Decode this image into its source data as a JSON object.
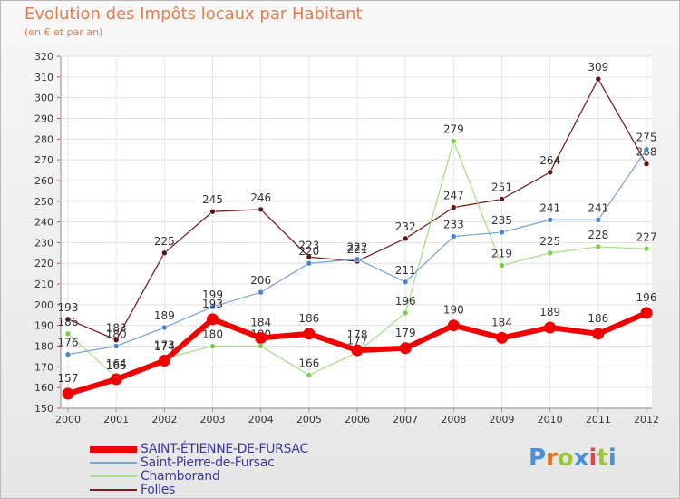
{
  "title": "Evolution des Impôts locaux par Habitant",
  "subtitle": "(en € et par an)",
  "logo": {
    "text": "Proxiti",
    "colors": [
      "#4a8fd9",
      "#e0732a",
      "#9fc33a",
      "#4a8fd9",
      "#d94a4a",
      "#9fc33a",
      "#4a8fd9"
    ]
  },
  "chart_data": {
    "type": "line",
    "categories": [
      "2000",
      "2001",
      "2002",
      "2003",
      "2004",
      "2005",
      "2006",
      "2007",
      "2008",
      "2009",
      "2010",
      "2011",
      "2012"
    ],
    "ylim": [
      150,
      320
    ],
    "yticks": [
      "150",
      "160",
      "170",
      "180",
      "190",
      "200",
      "210",
      "220",
      "230",
      "240",
      "250",
      "260",
      "270",
      "280",
      "290",
      "300",
      "310",
      "320"
    ],
    "grid": true,
    "legend_position": "bottom-left",
    "series": [
      {
        "name": "Folles",
        "color": "#7a2020",
        "marker": "#5c1414",
        "width": 1.3,
        "values": [
          193,
          183,
          225,
          245,
          246,
          223,
          221,
          232,
          247,
          251,
          264,
          309,
          268
        ]
      },
      {
        "name": "Chamborand",
        "color": "#a8e08a",
        "marker": "#78d048",
        "width": 1.3,
        "values": [
          186,
          165,
          174,
          180,
          180,
          166,
          177,
          196,
          279,
          219,
          225,
          228,
          227
        ]
      },
      {
        "name": "Saint-Pierre-de-Fursac",
        "color": "#7aa6d8",
        "marker": "#4a86cc",
        "width": 1.3,
        "values": [
          176,
          180,
          189,
          199,
          206,
          220,
          222,
          211,
          233,
          235,
          241,
          241,
          275
        ]
      },
      {
        "name": "SAINT-ÉTIENNE-DE-FURSAC",
        "color": "#f00000",
        "marker": "#f00000",
        "width": 6,
        "values": [
          157,
          164,
          173,
          193,
          184,
          186,
          178,
          179,
          190,
          184,
          189,
          186,
          196
        ]
      }
    ]
  },
  "legend": [
    {
      "label": "SAINT-ÉTIENNE-DE-FURSAC",
      "color": "#f00000",
      "thickness": 7
    },
    {
      "label": "Saint-Pierre-de-Fursac",
      "color": "#7aa6d8",
      "thickness": 2
    },
    {
      "label": "Chamborand",
      "color": "#a8e08a",
      "thickness": 2
    },
    {
      "label": "Folles",
      "color": "#7a2020",
      "thickness": 2
    }
  ]
}
